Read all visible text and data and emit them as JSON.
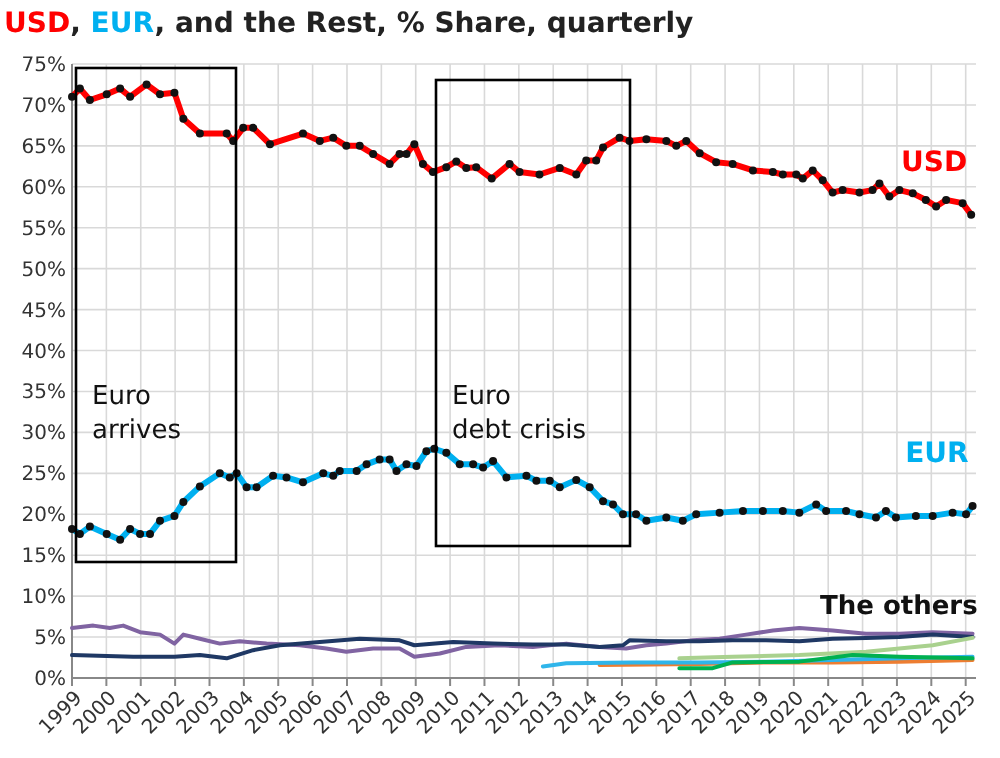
{
  "chart_data": {
    "type": "line",
    "title": "USD, EUR, and the Rest, % Share, quarterly",
    "xlim": [
      1999,
      2025.3
    ],
    "ylim": [
      0,
      75
    ],
    "xticks": [
      1999,
      2000,
      2001,
      2002,
      2003,
      2004,
      2005,
      2006,
      2007,
      2008,
      2009,
      2010,
      2011,
      2012,
      2013,
      2014,
      2015,
      2016,
      2017,
      2018,
      2019,
      2020,
      2021,
      2022,
      2023,
      2024,
      2025
    ],
    "yticks": [
      {
        "value": 0,
        "label": "0%"
      },
      {
        "value": 5,
        "label": "5%"
      },
      {
        "value": 10,
        "label": "10%"
      },
      {
        "value": 15,
        "label": "15%"
      },
      {
        "value": 20,
        "label": "20%"
      },
      {
        "value": 25,
        "label": "25%"
      },
      {
        "value": 30,
        "label": "30%"
      },
      {
        "value": 35,
        "label": "35%"
      },
      {
        "value": 40,
        "label": "40%"
      },
      {
        "value": 45,
        "label": "45%"
      },
      {
        "value": 50,
        "label": "50%"
      },
      {
        "value": 55,
        "label": "55%"
      },
      {
        "value": 60,
        "label": "60%"
      },
      {
        "value": 65,
        "label": "65%"
      },
      {
        "value": 70,
        "label": "70%"
      },
      {
        "value": 75,
        "label": "75%"
      }
    ],
    "grid": true,
    "series": [
      {
        "name": "USD",
        "color": "#ff0000",
        "marker": "circle",
        "x": [
          1999.0,
          1999.23,
          1999.52,
          2000.01,
          2000.4,
          2000.69,
          2001.17,
          2001.56,
          2001.98,
          2002.24,
          2002.72,
          2003.5,
          2003.69,
          2003.98,
          2004.27,
          2004.76,
          2005.72,
          2006.21,
          2006.6,
          2006.98,
          2007.37,
          2007.76,
          2008.24,
          2008.53,
          2008.73,
          2008.96,
          2009.21,
          2009.5,
          2009.89,
          2010.18,
          2010.47,
          2010.76,
          2011.21,
          2011.73,
          2012.02,
          2012.6,
          2013.19,
          2013.67,
          2013.96,
          2014.25,
          2014.45,
          2014.93,
          2015.22,
          2015.71,
          2016.29,
          2016.58,
          2016.87,
          2017.26,
          2017.74,
          2018.22,
          2018.81,
          2019.39,
          2019.68,
          2020.07,
          2020.26,
          2020.55,
          2020.84,
          2021.13,
          2021.42,
          2021.91,
          2022.29,
          2022.49,
          2022.78,
          2023.07,
          2023.46,
          2023.84,
          2024.14,
          2024.43,
          2024.91,
          2025.16
        ],
        "values": [
          71.0,
          72.0,
          70.6,
          71.3,
          72.0,
          71.0,
          72.5,
          71.3,
          71.5,
          68.3,
          66.5,
          66.5,
          65.6,
          67.2,
          67.2,
          65.2,
          66.5,
          65.6,
          66.0,
          65.0,
          65.0,
          64.0,
          62.8,
          64.0,
          64.0,
          65.2,
          62.8,
          61.8,
          62.4,
          63.1,
          62.3,
          62.4,
          61.0,
          62.8,
          61.8,
          61.5,
          62.3,
          61.5,
          63.2,
          63.2,
          64.8,
          66.0,
          65.6,
          65.8,
          65.6,
          65.0,
          65.6,
          64.1,
          63.0,
          62.8,
          62.0,
          61.8,
          61.5,
          61.5,
          61.0,
          62.0,
          60.8,
          59.3,
          59.6,
          59.3,
          59.6,
          60.4,
          58.8,
          59.6,
          59.2,
          58.4,
          57.6,
          58.4,
          58.0,
          56.6
        ]
      },
      {
        "name": "EUR",
        "color": "#00b0f0",
        "marker": "circle",
        "x": [
          1999.0,
          1999.23,
          1999.52,
          2000.01,
          2000.4,
          2000.69,
          2000.98,
          2001.27,
          2001.56,
          2001.98,
          2002.24,
          2002.72,
          2003.3,
          2003.59,
          2003.79,
          2004.08,
          2004.37,
          2004.85,
          2005.24,
          2005.72,
          2006.31,
          2006.6,
          2006.79,
          2007.28,
          2007.57,
          2007.95,
          2008.24,
          2008.44,
          2008.73,
          2009.02,
          2009.31,
          2009.54,
          2009.89,
          2010.28,
          2010.67,
          2010.96,
          2011.25,
          2011.64,
          2012.22,
          2012.51,
          2012.9,
          2013.19,
          2013.67,
          2014.06,
          2014.45,
          2014.74,
          2015.03,
          2015.41,
          2015.71,
          2016.29,
          2016.77,
          2017.16,
          2017.84,
          2018.52,
          2019.1,
          2019.68,
          2020.16,
          2020.65,
          2020.94,
          2021.52,
          2021.91,
          2022.39,
          2022.68,
          2022.97,
          2023.55,
          2024.04,
          2024.62,
          2025.01,
          2025.2
        ],
        "values": [
          18.2,
          17.6,
          18.5,
          17.6,
          16.9,
          18.2,
          17.6,
          17.6,
          19.2,
          19.8,
          21.5,
          23.4,
          25.0,
          24.5,
          25.0,
          23.3,
          23.3,
          24.7,
          24.5,
          23.9,
          25.0,
          24.7,
          25.3,
          25.3,
          26.1,
          26.7,
          26.7,
          25.3,
          26.1,
          25.9,
          27.7,
          28.0,
          27.5,
          26.1,
          26.1,
          25.7,
          26.5,
          24.5,
          24.7,
          24.1,
          24.1,
          23.3,
          24.2,
          23.3,
          21.6,
          21.2,
          20.0,
          20.0,
          19.2,
          19.6,
          19.2,
          20.0,
          20.2,
          20.4,
          20.4,
          20.4,
          20.2,
          21.2,
          20.4,
          20.4,
          20.0,
          19.6,
          20.4,
          19.6,
          19.8,
          19.8,
          20.2,
          20.0,
          21.0
        ]
      },
      {
        "color": "#8064a2",
        "x": [
          1999.0,
          1999.62,
          2000.1,
          2000.49,
          2000.98,
          2001.56,
          2001.98,
          2002.24,
          2002.72,
          2003.3,
          2003.88,
          2004.66,
          2005.63,
          2006.4,
          2006.98,
          2007.76,
          2008.53,
          2008.96,
          2009.7,
          2010.47,
          2011.44,
          2012.41,
          2013.38,
          2014.35,
          2015.12,
          2015.71,
          2016.29,
          2017.06,
          2017.84,
          2018.61,
          2019.39,
          2020.16,
          2021.13,
          2022.1,
          2023.07,
          2024.04,
          2025.2
        ],
        "values": [
          6.1,
          6.4,
          6.1,
          6.4,
          5.6,
          5.3,
          4.2,
          5.3,
          4.8,
          4.2,
          4.5,
          4.2,
          4.0,
          3.6,
          3.2,
          3.6,
          3.6,
          2.6,
          3.0,
          3.8,
          4.0,
          3.8,
          4.2,
          3.8,
          3.6,
          4.0,
          4.2,
          4.6,
          4.8,
          5.3,
          5.8,
          6.1,
          5.8,
          5.4,
          5.4,
          5.6,
          5.4
        ]
      },
      {
        "color": "#1f3864",
        "x": [
          1999.0,
          2000.78,
          2001.98,
          2002.72,
          2003.5,
          2004.27,
          2005.05,
          2006.21,
          2007.37,
          2008.53,
          2008.96,
          2010.09,
          2011.25,
          2012.41,
          2013.38,
          2014.35,
          2015.03,
          2015.22,
          2016.29,
          2017.26,
          2018.22,
          2019.19,
          2020.16,
          2021.13,
          2022.1,
          2023.07,
          2024.04,
          2025.2
        ],
        "values": [
          2.8,
          2.6,
          2.6,
          2.8,
          2.4,
          3.4,
          4.0,
          4.4,
          4.8,
          4.6,
          4.0,
          4.4,
          4.2,
          4.1,
          4.1,
          3.8,
          4.0,
          4.6,
          4.5,
          4.5,
          4.6,
          4.6,
          4.5,
          4.8,
          4.9,
          5.0,
          5.3,
          5.0
        ]
      },
      {
        "color": "#ed7d31",
        "x": [
          2014.35,
          2017.26,
          2019.19,
          2021.13,
          2023.07,
          2025.2
        ],
        "values": [
          1.6,
          1.7,
          1.9,
          1.9,
          2.0,
          2.2
        ]
      },
      {
        "color": "#2fb5ea",
        "x": [
          2012.7,
          2013.38,
          2015.32,
          2017.26,
          2019.19,
          2021.13,
          2023.07,
          2025.2
        ],
        "values": [
          1.4,
          1.8,
          1.9,
          1.9,
          2.0,
          2.2,
          2.4,
          2.6
        ]
      },
      {
        "color": "#a9d18e",
        "x": [
          2016.67,
          2018.22,
          2020.16,
          2022.1,
          2024.04,
          2025.2
        ],
        "values": [
          2.4,
          2.6,
          2.8,
          3.2,
          4.0,
          4.9
        ]
      },
      {
        "color": "#00b050",
        "x": [
          2016.67,
          2017.64,
          2018.22,
          2020.16,
          2021.71,
          2023.07,
          2025.2
        ],
        "values": [
          1.2,
          1.2,
          1.9,
          2.0,
          2.8,
          2.6,
          2.4
        ]
      }
    ],
    "annotations": [
      "Euro arrives",
      "Euro debt crisis",
      "The others"
    ]
  }
}
